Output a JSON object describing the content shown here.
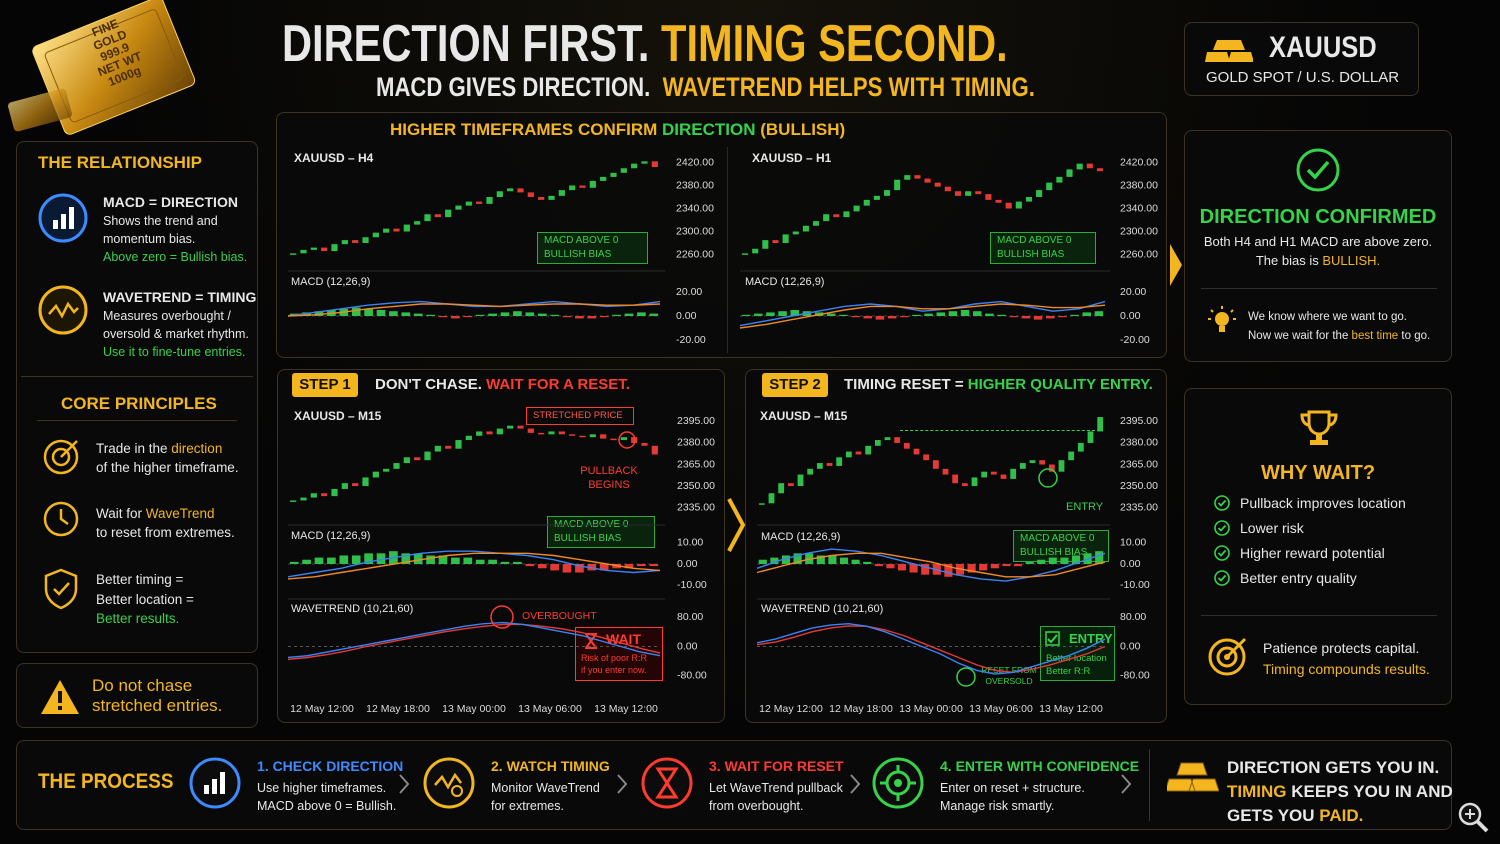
{
  "header": {
    "title": [
      [
        {
          "text": "DIRECTION FIRST. "
        },
        {
          "text": "TIMING SECOND.",
          "style": "gold"
        }
      ]
    ],
    "subtitle": [
      [
        {
          "text": "MACD GIVES DIRECTION.  "
        },
        {
          "text": "WAVETREND HELPS WITH TIMING.",
          "style": "gold"
        }
      ]
    ]
  },
  "gold_bar": [
    "FINE",
    "GOLD",
    "999.9",
    "NET WT",
    "1000g"
  ],
  "symbol": {
    "ticker": "XAUUSD",
    "name": "GOLD SPOT / U.S. DOLLAR"
  },
  "relationship": {
    "title": "THE RELATIONSHIP",
    "items": [
      {
        "heading": "MACD = DIRECTION",
        "body": [
          [
            {
              "text": "Shows the trend and"
            }
          ],
          [
            {
              "text": "momentum bias."
            }
          ],
          [
            {
              "text": "Above zero = Bullish bias.",
              "style": "green"
            }
          ]
        ]
      },
      {
        "heading": "WAVETREND = TIMING",
        "body": [
          [
            {
              "text": "Measures overbought /"
            }
          ],
          [
            {
              "text": "oversold & market rhythm."
            }
          ],
          [
            {
              "text": "Use it to fine-tune entries.",
              "style": "green"
            }
          ]
        ]
      }
    ]
  },
  "principles": {
    "title": "CORE PRINCIPLES",
    "items": [
      [
        [
          {
            "text": "Trade in the "
          },
          {
            "text": "direction",
            "style": "gold"
          }
        ],
        [
          {
            "text": "of the higher timeframe."
          }
        ]
      ],
      [
        [
          {
            "text": "Wait for "
          },
          {
            "text": "WaveTrend",
            "style": "gold"
          }
        ],
        [
          {
            "text": "to reset from extremes."
          }
        ]
      ],
      [
        [
          {
            "text": "Better timing ="
          }
        ],
        [
          {
            "text": "Better location ="
          }
        ],
        [
          {
            "text": "Better results.",
            "style": "green"
          }
        ]
      ]
    ]
  },
  "warning": [
    "Do not chase",
    "stretched entries."
  ],
  "colors": {
    "up": "#2fbf4a",
    "down": "#e53935",
    "macd": "#3b82f6",
    "signal": "#f08a24",
    "wt1": "#3b82f6",
    "wt2": "#e53935"
  },
  "htf": {
    "title": [
      [
        {
          "text": "HIGHER TIMEFRAMES CONFIRM "
        },
        {
          "text": "DIRECTION",
          "style": "green"
        },
        {
          "text": " (BULLISH)"
        }
      ]
    ],
    "panels": [
      {
        "label": "XAUUSD – H4",
        "price": {
          "ylim": [
            2240,
            2440
          ],
          "yticks": [
            {
              "value": 2420,
              "label": "2420.00"
            },
            {
              "value": 2380,
              "label": "2380.00"
            },
            {
              "value": 2340,
              "label": "2340.00"
            },
            {
              "value": 2300,
              "label": "2300.00"
            },
            {
              "value": 2260,
              "label": "2260.00"
            }
          ],
          "values": [
            2262,
            2268,
            2272,
            2266,
            2278,
            2285,
            2280,
            2290,
            2298,
            2305,
            2300,
            2312,
            2318,
            2330,
            2325,
            2338,
            2345,
            2352,
            2348,
            2360,
            2370,
            2375,
            2368,
            2360,
            2355,
            2362,
            2372,
            2380,
            2376,
            2388,
            2395,
            2402,
            2410,
            2418,
            2422,
            2412
          ]
        },
        "badge": [
          "MACD ABOVE 0",
          "BULLISH BIAS"
        ],
        "macd": {
          "label": "MACD (12,26,9)",
          "ylim": [
            -30,
            30
          ],
          "yticks": [
            {
              "value": 20,
              "label": "20.00"
            },
            {
              "value": 0,
              "label": "0.00"
            },
            {
              "value": -20,
              "label": "-20.00"
            }
          ],
          "histogram": [
            2,
            3,
            4,
            5,
            6,
            7,
            6,
            5,
            4,
            3,
            2,
            1,
            -1,
            -2,
            -1,
            1,
            2,
            3,
            4,
            3,
            2,
            1,
            -1,
            -2,
            -2,
            -1,
            1,
            2,
            3,
            2
          ],
          "macd": [
            0,
            3,
            6,
            9,
            11,
            12,
            10,
            8,
            8,
            10,
            12,
            10,
            8,
            9,
            12
          ],
          "signal": [
            0,
            1,
            3,
            6,
            8,
            10,
            10,
            9,
            8,
            9,
            10,
            10,
            9,
            9,
            10
          ]
        }
      },
      {
        "label": "XAUUSD – H1",
        "price": {
          "ylim": [
            2240,
            2440
          ],
          "yticks": [
            {
              "value": 2420,
              "label": "2420.00"
            },
            {
              "value": 2380,
              "label": "2380.00"
            },
            {
              "value": 2340,
              "label": "2340.00"
            },
            {
              "value": 2300,
              "label": "2300.00"
            },
            {
              "value": 2260,
              "label": "2260.00"
            }
          ],
          "values": [
            2262,
            2270,
            2285,
            2280,
            2295,
            2300,
            2310,
            2318,
            2330,
            2325,
            2335,
            2345,
            2355,
            2362,
            2372,
            2390,
            2398,
            2392,
            2385,
            2378,
            2370,
            2362,
            2370,
            2365,
            2355,
            2350,
            2340,
            2352,
            2360,
            2372,
            2385,
            2395,
            2408,
            2418,
            2410,
            2405
          ]
        },
        "badge": [
          "MACD ABOVE 0",
          "BULLISH BIAS"
        ],
        "macd": {
          "label": "MACD (12,26,9)",
          "ylim": [
            -30,
            30
          ],
          "yticks": [
            {
              "value": 20,
              "label": "20.00"
            },
            {
              "value": 0,
              "label": "0.00"
            },
            {
              "value": -20,
              "label": "-20.00"
            }
          ],
          "histogram": [
            1,
            2,
            3,
            4,
            5,
            4,
            3,
            2,
            1,
            -1,
            -2,
            -3,
            -2,
            -1,
            1,
            2,
            3,
            4,
            5,
            4,
            2,
            1,
            -1,
            -2,
            -3,
            -2,
            -1,
            1,
            3,
            4
          ],
          "macd": [
            -8,
            -4,
            0,
            4,
            8,
            10,
            8,
            4,
            6,
            10,
            12,
            8,
            4,
            6,
            12
          ],
          "signal": [
            -10,
            -7,
            -3,
            1,
            5,
            8,
            8,
            6,
            6,
            8,
            10,
            9,
            7,
            7,
            9
          ]
        }
      }
    ]
  },
  "steps": [
    {
      "badge": "STEP 1",
      "title": [
        [
          {
            "text": "DON'T CHASE. "
          },
          {
            "text": "WAIT FOR A RESET.",
            "style": "red"
          }
        ]
      ],
      "label": "XAUUSD – M15",
      "price": {
        "ylim": [
          2325,
          2405
        ],
        "yticks": [
          {
            "value": 2395,
            "label": "2395.00"
          },
          {
            "value": 2380,
            "label": "2380.00"
          },
          {
            "value": 2365,
            "label": "2365.00"
          },
          {
            "value": 2350,
            "label": "2350.00"
          },
          {
            "value": 2335,
            "label": "2335.00"
          }
        ],
        "values": [
          2340,
          2342,
          2345,
          2343,
          2348,
          2352,
          2350,
          2356,
          2360,
          2362,
          2366,
          2370,
          2368,
          2374,
          2378,
          2376,
          2382,
          2385,
          2388,
          2386,
          2390,
          2392,
          2390,
          2387,
          2386,
          2388,
          2386,
          2385,
          2384,
          2386,
          2383,
          2382,
          2384,
          2380,
          2378,
          2372
        ]
      },
      "stretched": "STRETCHED PRICE",
      "pullback": [
        "PULLBACK",
        "BEGINS"
      ],
      "badge_macd": [
        "MACD ABOVE 0",
        "BULLISH BIAS"
      ],
      "macd": {
        "label": "MACD (12,26,9)",
        "ylim": [
          -15,
          15
        ],
        "yticks": [
          {
            "value": 10,
            "label": "10.00"
          },
          {
            "value": 0,
            "label": "0.00"
          },
          {
            "value": -10,
            "label": "-10.00"
          }
        ],
        "histogram": [
          1,
          2,
          3,
          3,
          4,
          4,
          5,
          5,
          6,
          5,
          5,
          4,
          4,
          3,
          3,
          2,
          2,
          1,
          1,
          -1,
          -2,
          -3,
          -4,
          -4,
          -3,
          -3,
          -2,
          -2,
          -1,
          -1
        ],
        "macd": [
          -6,
          -4,
          -2,
          1,
          3,
          5,
          6,
          6,
          5,
          4,
          2,
          -1,
          -3,
          -4,
          -3
        ],
        "signal": [
          -7,
          -6,
          -4,
          -2,
          0,
          2,
          4,
          5,
          5,
          5,
          4,
          2,
          0,
          -2,
          -3
        ]
      },
      "wavetrend": {
        "label": "WAVETREND (10,21,60)",
        "ylim": [
          -110,
          110
        ],
        "yticks": [
          {
            "value": 80,
            "label": "80.00"
          },
          {
            "value": 0,
            "label": "0.00"
          },
          {
            "value": -80,
            "label": "-80.00"
          }
        ],
        "wt1": [
          -30,
          -25,
          -15,
          -5,
          5,
          15,
          25,
          35,
          45,
          55,
          62,
          65,
          60,
          50,
          40,
          30,
          15,
          0,
          -15,
          -25
        ],
        "wt2": [
          -35,
          -30,
          -22,
          -12,
          0,
          10,
          20,
          30,
          40,
          48,
          55,
          60,
          60,
          55,
          48,
          38,
          25,
          10,
          -5,
          -18
        ]
      },
      "marker": "OVERBOUGHT",
      "box": {
        "title": "WAIT",
        "lines": [
          "Risk of poor R:R",
          "if you enter now."
        ]
      },
      "x_labels": [
        "12 May 12:00",
        "12 May 18:00",
        "13 May 00:00",
        "13 May 06:00",
        "13 May 12:00"
      ]
    },
    {
      "badge": "STEP 2",
      "title": [
        [
          {
            "text": "TIMING RESET = "
          },
          {
            "text": "HIGHER QUALITY ENTRY.",
            "style": "green"
          }
        ]
      ],
      "label": "XAUUSD – M15",
      "price": {
        "ylim": [
          2325,
          2405
        ],
        "yticks": [
          {
            "value": 2395,
            "label": "2395.00"
          },
          {
            "value": 2380,
            "label": "2380.00"
          },
          {
            "value": 2365,
            "label": "2365.00"
          },
          {
            "value": 2350,
            "label": "2350.00"
          },
          {
            "value": 2335,
            "label": "2335.00"
          }
        ],
        "values": [
          2338,
          2345,
          2352,
          2350,
          2358,
          2362,
          2366,
          2364,
          2370,
          2374,
          2372,
          2378,
          2382,
          2384,
          2380,
          2376,
          2372,
          2368,
          2362,
          2358,
          2352,
          2350,
          2356,
          2360,
          2358,
          2355,
          2362,
          2366,
          2368,
          2365,
          2360,
          2368,
          2374,
          2380,
          2388,
          2398
        ]
      },
      "entry": "ENTRY",
      "badge_macd": [
        "MACD ABOVE 0",
        "BULLISH BIAS"
      ],
      "macd": {
        "label": "MACD (12,26,9)",
        "ylim": [
          -15,
          15
        ],
        "yticks": [
          {
            "value": 10,
            "label": "10.00"
          },
          {
            "value": 0,
            "label": "0.00"
          },
          {
            "value": -10,
            "label": "-10.00"
          }
        ],
        "histogram": [
          2,
          3,
          4,
          5,
          5,
          4,
          4,
          3,
          2,
          1,
          -1,
          -2,
          -3,
          -4,
          -5,
          -5,
          -6,
          -5,
          -4,
          -3,
          -2,
          -1,
          -1,
          1,
          2,
          3,
          3,
          4,
          5,
          6
        ],
        "macd": [
          -2,
          2,
          5,
          7,
          6,
          4,
          1,
          -2,
          -5,
          -7,
          -8,
          -6,
          -3,
          1,
          5
        ],
        "signal": [
          -4,
          -1,
          2,
          4,
          5,
          5,
          3,
          1,
          -2,
          -4,
          -6,
          -6,
          -5,
          -2,
          1
        ]
      },
      "wavetrend": {
        "label": "WAVETREND (10,21,60)",
        "ylim": [
          -110,
          110
        ],
        "yticks": [
          {
            "value": 80,
            "label": "80.00"
          },
          {
            "value": 0,
            "label": "0.00"
          },
          {
            "value": -80,
            "label": "-80.00"
          }
        ],
        "wt1": [
          10,
          20,
          35,
          50,
          58,
          62,
          55,
          40,
          20,
          0,
          -20,
          -45,
          -65,
          -75,
          -70,
          -55,
          -40,
          -25,
          -5,
          20
        ],
        "wt2": [
          5,
          12,
          25,
          40,
          50,
          56,
          55,
          45,
          30,
          10,
          -10,
          -30,
          -50,
          -65,
          -70,
          -62,
          -50,
          -35,
          -20,
          0
        ]
      },
      "marker": [
        "RESET FROM",
        "OVERSOLD"
      ],
      "box": {
        "title": "ENTRY",
        "lines": [
          "Better location",
          "Better R:R"
        ]
      },
      "x_labels": [
        "12 May 12:00",
        "12 May 18:00",
        "13 May 00:00",
        "13 May 06:00",
        "13 May 12:00"
      ]
    }
  ],
  "confirmed": {
    "title": "DIRECTION CONFIRMED",
    "body": [
      [
        {
          "text": "Both H4 and H1 MACD are above zero."
        }
      ],
      [
        {
          "text": "The bias is "
        },
        {
          "text": "BULLISH.",
          "style": "gold"
        }
      ]
    ],
    "note": [
      [
        {
          "text": "We know where we want to go."
        }
      ],
      [
        {
          "text": "Now we wait for the "
        },
        {
          "text": "best time",
          "style": "gold"
        },
        {
          "text": " to go."
        }
      ]
    ]
  },
  "why_wait": {
    "title": "WHY WAIT?",
    "items": [
      "Pullback improves location",
      "Lower risk",
      "Higher reward potential",
      "Better entry quality"
    ],
    "footer": [
      [
        {
          "text": "Patience protects capital."
        }
      ],
      [
        {
          "text": "Timing compounds results.",
          "style": "gold"
        }
      ]
    ]
  },
  "process": {
    "title": "THE PROCESS",
    "steps": [
      {
        "title": "1. CHECK DIRECTION",
        "color": "#3d8bff",
        "lines": [
          "Use higher timeframes.",
          "MACD above 0 = Bullish."
        ]
      },
      {
        "title": "2. WATCH TIMING",
        "color": "#f3b61f",
        "lines": [
          "Monitor WaveTrend",
          "for extremes."
        ]
      },
      {
        "title": "3. WAIT FOR RESET",
        "color": "#ff3b30",
        "lines": [
          "Let WaveTrend pullback",
          "from overbought."
        ]
      },
      {
        "title": "4. ENTER WITH CONFIDENCE",
        "color": "#36d24a",
        "lines": [
          "Enter on reset + structure.",
          "Manage risk smartly."
        ]
      }
    ],
    "closing": [
      [
        {
          "text": "DIRECTION GETS YOU IN."
        }
      ],
      [
        {
          "text": "TIMING",
          "style": "gold"
        },
        {
          "text": " KEEPS YOU IN AND"
        }
      ],
      [
        {
          "text": "GETS YOU "
        },
        {
          "text": "PAID.",
          "style": "gold"
        }
      ]
    ]
  }
}
